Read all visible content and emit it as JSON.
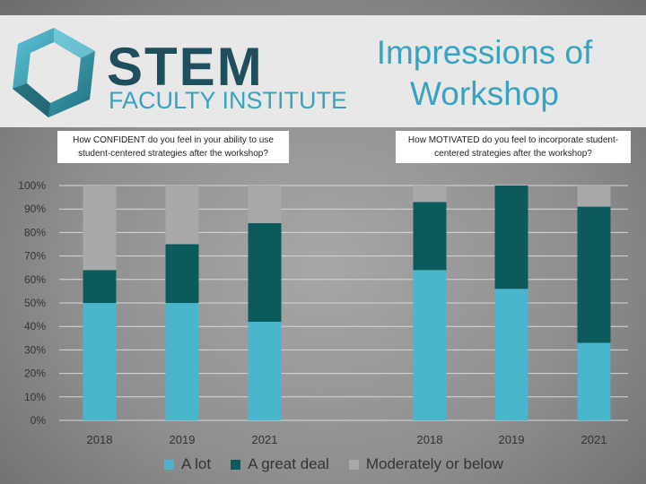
{
  "header": {
    "brand_main": "STEM",
    "brand_sub": "FACULTY INSTITUTE",
    "title_line1": "Impressions of",
    "title_line2": "Workshop"
  },
  "colors": {
    "a_lot": "#4ab6cb",
    "a_great_deal": "#0b5a5c",
    "moderately": "#a9a9a9",
    "title": "#36a4c0",
    "brand_dark": "#1f4e5d"
  },
  "chart_data": {
    "type": "bar",
    "stacked": true,
    "ylim": [
      0,
      100
    ],
    "yticks": [
      "0%",
      "10%",
      "20%",
      "30%",
      "40%",
      "50%",
      "60%",
      "70%",
      "80%",
      "90%",
      "100%"
    ],
    "legend": [
      "A lot",
      "A great deal",
      "Moderately or below"
    ],
    "legend_position": "bottom",
    "groups": [
      {
        "question": "How CONFIDENT do you feel in your ability to use student-centered strategies after the workshop?",
        "categories": [
          "2018",
          "2019",
          "2021"
        ],
        "series": [
          {
            "name": "A lot",
            "values": [
              50,
              50,
              42
            ]
          },
          {
            "name": "A great deal",
            "values": [
              14,
              25,
              42
            ]
          },
          {
            "name": "Moderately or below",
            "values": [
              36,
              25,
              16
            ]
          }
        ]
      },
      {
        "question": "How MOTIVATED do you feel to incorporate student-centered strategies after the workshop?",
        "categories": [
          "2018",
          "2019",
          "2021"
        ],
        "series": [
          {
            "name": "A lot",
            "values": [
              64,
              56,
              33
            ]
          },
          {
            "name": "A great deal",
            "values": [
              29,
              44,
              58
            ]
          },
          {
            "name": "Moderately or below",
            "values": [
              7,
              0,
              9
            ]
          }
        ]
      }
    ]
  }
}
